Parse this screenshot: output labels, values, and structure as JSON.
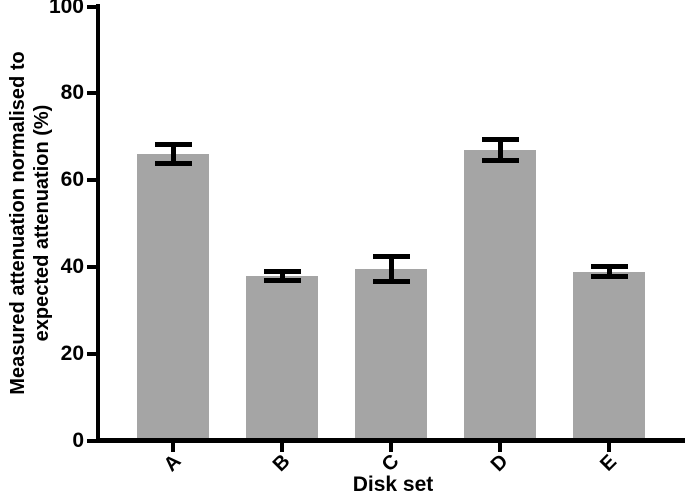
{
  "chart_data": {
    "type": "bar",
    "title": "",
    "xlabel": "Disk set",
    "ylabel": "Measured attenuation normalised to expected attenuation (%)",
    "ylabel_lines": [
      "Measured attenuation normalised to",
      "expected attenuation (%)"
    ],
    "categories": [
      "A",
      "B",
      "C",
      "D",
      "E"
    ],
    "values": [
      66,
      38,
      39.5,
      67,
      39
    ],
    "errors": [
      2.2,
      1.0,
      2.9,
      2.4,
      1.2
    ],
    "ylim": [
      0,
      100
    ],
    "yticks": [
      0,
      20,
      40,
      60,
      80,
      100
    ],
    "grid": false,
    "legend": null,
    "bar_color": "#a5a5a5",
    "error_bar_color": "#000000",
    "axis_color": "#000000",
    "background_color": "#ffffff"
  }
}
